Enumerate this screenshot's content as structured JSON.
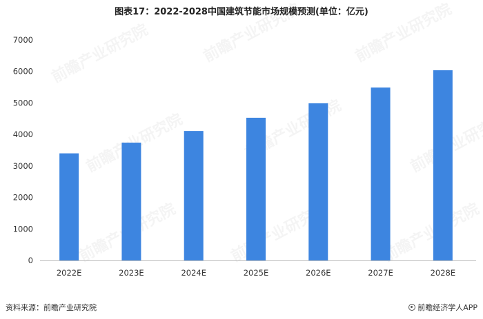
{
  "chart_data": {
    "type": "bar",
    "title": "图表17：2022-2028中国建筑节能市场规模预测(单位：亿元)",
    "categories": [
      "2022E",
      "2023E",
      "2024E",
      "2025E",
      "2026E",
      "2027E",
      "2028E"
    ],
    "values": [
      3400,
      3740,
      4110,
      4530,
      4990,
      5490,
      6040
    ],
    "ylim": [
      0,
      7000
    ],
    "yticks": [
      0,
      1000,
      2000,
      3000,
      4000,
      5000,
      6000,
      7000
    ],
    "grid": false,
    "legend": "none",
    "bar_color": "#3d85e0"
  },
  "footer": {
    "source": "资料来源：前瞻产业研究院",
    "brand": "前瞻经济学人APP"
  },
  "watermark": {
    "text": "前瞻产业研究院"
  }
}
